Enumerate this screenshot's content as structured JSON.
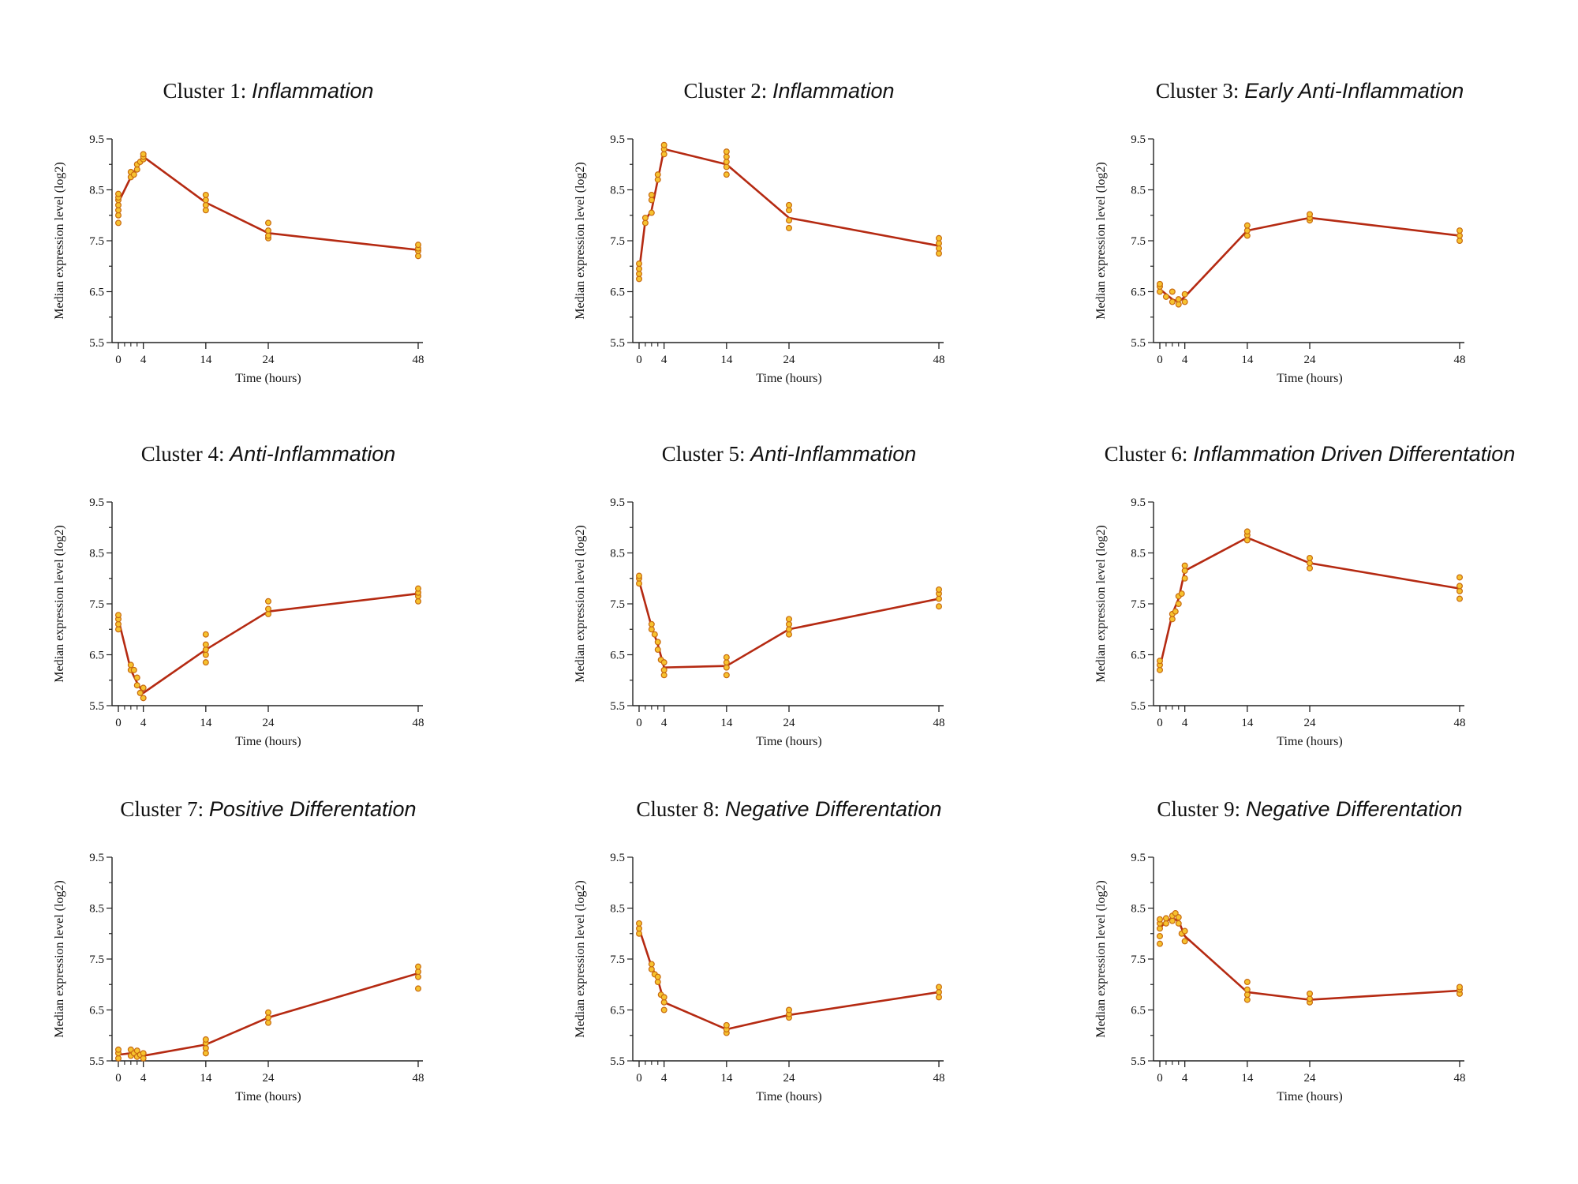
{
  "figure": {
    "y_axis_label": "Median expression level (log2)",
    "x_axis_label": "Time (hours)",
    "line_color": "#b52a12",
    "point_fill": "#f6c22f",
    "point_stroke": "#c86a10"
  },
  "chart_data": [
    {
      "type": "line",
      "title_prefix": "Cluster 1: ",
      "title_italic": "Inflammation",
      "xlabel": "Time (hours)",
      "ylabel": "Median expression level (log2)",
      "xlim": [
        0,
        48
      ],
      "ylim": [
        5.5,
        9.5
      ],
      "xticks": [
        0,
        4,
        14,
        24,
        48
      ],
      "yticks": [
        5.5,
        6.5,
        7.5,
        8.5,
        9.5
      ],
      "x": [
        0,
        2,
        3,
        4,
        14,
        24,
        48
      ],
      "y": [
        8.25,
        8.75,
        8.95,
        9.15,
        8.25,
        7.65,
        7.32
      ],
      "scatter": [
        [
          0,
          7.85
        ],
        [
          0,
          8.0
        ],
        [
          0,
          8.1
        ],
        [
          0,
          8.2
        ],
        [
          0,
          8.3
        ],
        [
          0,
          8.35
        ],
        [
          0,
          8.42
        ],
        [
          2,
          8.75
        ],
        [
          2,
          8.85
        ],
        [
          2.5,
          8.8
        ],
        [
          3,
          8.9
        ],
        [
          3,
          9.0
        ],
        [
          3.5,
          9.05
        ],
        [
          4,
          9.1
        ],
        [
          4,
          9.15
        ],
        [
          4,
          9.2
        ],
        [
          14,
          8.1
        ],
        [
          14,
          8.2
        ],
        [
          14,
          8.3
        ],
        [
          14,
          8.4
        ],
        [
          24,
          7.55
        ],
        [
          24,
          7.6
        ],
        [
          24,
          7.7
        ],
        [
          24,
          7.85
        ],
        [
          48,
          7.2
        ],
        [
          48,
          7.3
        ],
        [
          48,
          7.35
        ],
        [
          48,
          7.42
        ]
      ]
    },
    {
      "type": "line",
      "title_prefix": "Cluster 2: ",
      "title_italic": "Inflammation",
      "xlabel": "Time (hours)",
      "ylabel": "Median expression level (log2)",
      "xlim": [
        0,
        48
      ],
      "ylim": [
        5.5,
        9.5
      ],
      "xticks": [
        0,
        4,
        14,
        24,
        48
      ],
      "yticks": [
        5.5,
        6.5,
        7.5,
        8.5,
        9.5
      ],
      "x": [
        0,
        1,
        2,
        3,
        4,
        14,
        24,
        48
      ],
      "y": [
        6.9,
        7.9,
        8.1,
        8.7,
        9.3,
        9.0,
        7.95,
        7.4
      ],
      "scatter": [
        [
          0,
          6.75
        ],
        [
          0,
          6.85
        ],
        [
          0,
          6.95
        ],
        [
          0,
          7.05
        ],
        [
          1,
          7.85
        ],
        [
          1,
          7.95
        ],
        [
          2,
          8.05
        ],
        [
          2,
          8.3
        ],
        [
          2,
          8.4
        ],
        [
          3,
          8.7
        ],
        [
          3,
          8.8
        ],
        [
          4,
          9.2
        ],
        [
          4,
          9.3
        ],
        [
          4,
          9.38
        ],
        [
          14,
          8.8
        ],
        [
          14,
          8.95
        ],
        [
          14,
          9.05
        ],
        [
          14,
          9.15
        ],
        [
          14,
          9.25
        ],
        [
          24,
          7.75
        ],
        [
          24,
          7.9
        ],
        [
          24,
          8.1
        ],
        [
          24,
          8.2
        ],
        [
          48,
          7.25
        ],
        [
          48,
          7.35
        ],
        [
          48,
          7.45
        ],
        [
          48,
          7.55
        ]
      ]
    },
    {
      "type": "line",
      "title_prefix": "Cluster 3: ",
      "title_italic": "Early Anti-Inflammation",
      "xlabel": "Time (hours)",
      "ylabel": "Median expression level (log2)",
      "xlim": [
        0,
        48
      ],
      "ylim": [
        5.5,
        9.5
      ],
      "xticks": [
        0,
        4,
        14,
        24,
        48
      ],
      "yticks": [
        5.5,
        6.5,
        7.5,
        8.5,
        9.5
      ],
      "x": [
        0,
        2,
        3,
        4,
        14,
        24,
        48
      ],
      "y": [
        6.55,
        6.35,
        6.3,
        6.4,
        7.7,
        7.95,
        7.6
      ],
      "scatter": [
        [
          0,
          6.5
        ],
        [
          0,
          6.6
        ],
        [
          0,
          6.65
        ],
        [
          1,
          6.4
        ],
        [
          2,
          6.3
        ],
        [
          2,
          6.5
        ],
        [
          3,
          6.25
        ],
        [
          3,
          6.35
        ],
        [
          4,
          6.3
        ],
        [
          4,
          6.45
        ],
        [
          14,
          7.6
        ],
        [
          14,
          7.7
        ],
        [
          14,
          7.8
        ],
        [
          24,
          7.9
        ],
        [
          24,
          7.95
        ],
        [
          24,
          8.02
        ],
        [
          48,
          7.5
        ],
        [
          48,
          7.6
        ],
        [
          48,
          7.7
        ]
      ]
    },
    {
      "type": "line",
      "title_prefix": "Cluster  4: ",
      "title_italic": "Anti-Inflammation",
      "xlabel": "Time (hours)",
      "ylabel": "Median expression level (log2)",
      "xlim": [
        0,
        48
      ],
      "ylim": [
        5.5,
        9.5
      ],
      "xticks": [
        0,
        4,
        14,
        24,
        48
      ],
      "yticks": [
        5.5,
        6.5,
        7.5,
        8.5,
        9.5
      ],
      "x": [
        0,
        2,
        3,
        4,
        14,
        24,
        48
      ],
      "y": [
        7.2,
        6.2,
        5.95,
        5.75,
        6.6,
        7.35,
        7.7
      ],
      "scatter": [
        [
          0,
          7.0
        ],
        [
          0,
          7.1
        ],
        [
          0,
          7.2
        ],
        [
          0,
          7.28
        ],
        [
          2,
          6.2
        ],
        [
          2,
          6.3
        ],
        [
          2.5,
          6.2
        ],
        [
          3,
          5.9
        ],
        [
          3,
          6.05
        ],
        [
          3.5,
          5.75
        ],
        [
          4,
          5.65
        ],
        [
          4,
          5.85
        ],
        [
          14,
          6.35
        ],
        [
          14,
          6.5
        ],
        [
          14,
          6.6
        ],
        [
          14,
          6.7
        ],
        [
          14,
          6.9
        ],
        [
          24,
          7.3
        ],
        [
          24,
          7.4
        ],
        [
          24,
          7.55
        ],
        [
          48,
          7.55
        ],
        [
          48,
          7.65
        ],
        [
          48,
          7.72
        ],
        [
          48,
          7.8
        ]
      ]
    },
    {
      "type": "line",
      "title_prefix": "Cluster  5: ",
      "title_italic": "Anti-Inflammation",
      "xlabel": "Time (hours)",
      "ylabel": "Median expression level (log2)",
      "xlim": [
        0,
        48
      ],
      "ylim": [
        5.5,
        9.5
      ],
      "xticks": [
        0,
        4,
        14,
        24,
        48
      ],
      "yticks": [
        5.5,
        6.5,
        7.5,
        8.5,
        9.5
      ],
      "x": [
        0,
        2,
        3,
        4,
        14,
        24,
        48
      ],
      "y": [
        7.95,
        7.05,
        6.7,
        6.25,
        6.28,
        7.0,
        7.6
      ],
      "scatter": [
        [
          0,
          7.9
        ],
        [
          0,
          8.0
        ],
        [
          0,
          8.05
        ],
        [
          2,
          7.0
        ],
        [
          2,
          7.1
        ],
        [
          2.5,
          6.9
        ],
        [
          3,
          6.6
        ],
        [
          3,
          6.75
        ],
        [
          3.5,
          6.4
        ],
        [
          4,
          6.1
        ],
        [
          4,
          6.2
        ],
        [
          4,
          6.35
        ],
        [
          14,
          6.1
        ],
        [
          14,
          6.25
        ],
        [
          14,
          6.35
        ],
        [
          14,
          6.45
        ],
        [
          24,
          6.9
        ],
        [
          24,
          7.0
        ],
        [
          24,
          7.1
        ],
        [
          24,
          7.2
        ],
        [
          48,
          7.45
        ],
        [
          48,
          7.6
        ],
        [
          48,
          7.7
        ],
        [
          48,
          7.78
        ]
      ]
    },
    {
      "type": "line",
      "title_prefix": "Cluster  6: ",
      "title_italic": "Inflammation Driven Differentation",
      "xlabel": "Time (hours)",
      "ylabel": "Median expression level (log2)",
      "xlim": [
        0,
        48
      ],
      "ylim": [
        5.5,
        9.5
      ],
      "xticks": [
        0,
        4,
        14,
        24,
        48
      ],
      "yticks": [
        5.5,
        6.5,
        7.5,
        8.5,
        9.5
      ],
      "x": [
        0,
        2,
        3,
        4,
        14,
        24,
        48
      ],
      "y": [
        6.25,
        7.3,
        7.6,
        8.15,
        8.8,
        8.3,
        7.8
      ],
      "scatter": [
        [
          0,
          6.2
        ],
        [
          0,
          6.3
        ],
        [
          0,
          6.38
        ],
        [
          2,
          7.2
        ],
        [
          2,
          7.3
        ],
        [
          2.5,
          7.35
        ],
        [
          3,
          7.5
        ],
        [
          3,
          7.65
        ],
        [
          3.5,
          7.7
        ],
        [
          4,
          8.0
        ],
        [
          4,
          8.15
        ],
        [
          4,
          8.25
        ],
        [
          14,
          8.75
        ],
        [
          14,
          8.85
        ],
        [
          14,
          8.92
        ],
        [
          24,
          8.2
        ],
        [
          24,
          8.3
        ],
        [
          24,
          8.4
        ],
        [
          48,
          7.6
        ],
        [
          48,
          7.75
        ],
        [
          48,
          7.85
        ],
        [
          48,
          8.02
        ]
      ]
    },
    {
      "type": "line",
      "title_prefix": "Cluster  7: ",
      "title_italic": "Positive Differentation",
      "xlabel": "Time (hours)",
      "ylabel": "Median expression level (log2)",
      "xlim": [
        0,
        48
      ],
      "ylim": [
        5.5,
        9.5
      ],
      "xticks": [
        0,
        4,
        14,
        24,
        48
      ],
      "yticks": [
        5.5,
        6.5,
        7.5,
        8.5,
        9.5
      ],
      "x": [
        0,
        2,
        3,
        4,
        14,
        24,
        48
      ],
      "y": [
        5.62,
        5.65,
        5.63,
        5.6,
        5.82,
        6.35,
        7.22
      ],
      "scatter": [
        [
          0,
          5.55
        ],
        [
          0,
          5.65
        ],
        [
          0,
          5.72
        ],
        [
          2,
          5.6
        ],
        [
          2,
          5.72
        ],
        [
          2.5,
          5.65
        ],
        [
          3,
          5.58
        ],
        [
          3,
          5.7
        ],
        [
          3.5,
          5.62
        ],
        [
          4,
          5.55
        ],
        [
          4,
          5.65
        ],
        [
          14,
          5.65
        ],
        [
          14,
          5.75
        ],
        [
          14,
          5.85
        ],
        [
          14,
          5.92
        ],
        [
          24,
          6.25
        ],
        [
          24,
          6.35
        ],
        [
          24,
          6.45
        ],
        [
          48,
          6.92
        ],
        [
          48,
          7.15
        ],
        [
          48,
          7.25
        ],
        [
          48,
          7.35
        ]
      ]
    },
    {
      "type": "line",
      "title_prefix": "Cluster  8: ",
      "title_italic": "Negative Differentation",
      "xlabel": "Time (hours)",
      "ylabel": "Median expression level (log2)",
      "xlim": [
        0,
        48
      ],
      "ylim": [
        5.5,
        9.5
      ],
      "xticks": [
        0,
        4,
        14,
        24,
        48
      ],
      "yticks": [
        5.5,
        6.5,
        7.5,
        8.5,
        9.5
      ],
      "x": [
        0,
        2,
        3,
        4,
        14,
        24,
        48
      ],
      "y": [
        8.1,
        7.35,
        7.1,
        6.65,
        6.12,
        6.4,
        6.85
      ],
      "scatter": [
        [
          0,
          8.0
        ],
        [
          0,
          8.1
        ],
        [
          0,
          8.2
        ],
        [
          2,
          7.3
        ],
        [
          2,
          7.4
        ],
        [
          2.5,
          7.2
        ],
        [
          3,
          7.05
        ],
        [
          3,
          7.15
        ],
        [
          3.5,
          6.8
        ],
        [
          4,
          6.5
        ],
        [
          4,
          6.65
        ],
        [
          4,
          6.75
        ],
        [
          14,
          6.05
        ],
        [
          14,
          6.12
        ],
        [
          14,
          6.2
        ],
        [
          24,
          6.35
        ],
        [
          24,
          6.42
        ],
        [
          24,
          6.5
        ],
        [
          48,
          6.75
        ],
        [
          48,
          6.85
        ],
        [
          48,
          6.95
        ]
      ]
    },
    {
      "type": "line",
      "title_prefix": "Cluster  9: ",
      "title_italic": "Negative Differentation",
      "xlabel": "Time (hours)",
      "ylabel": "Median expression level (log2)",
      "xlim": [
        0,
        48
      ],
      "ylim": [
        5.5,
        9.5
      ],
      "xticks": [
        0,
        4,
        14,
        24,
        48
      ],
      "yticks": [
        5.5,
        6.5,
        7.5,
        8.5,
        9.5
      ],
      "x": [
        0,
        1,
        2,
        3,
        4,
        14,
        24,
        48
      ],
      "y": [
        8.1,
        8.25,
        8.3,
        8.25,
        7.95,
        6.85,
        6.7,
        6.88
      ],
      "scatter": [
        [
          0,
          7.8
        ],
        [
          0,
          7.95
        ],
        [
          0,
          8.1
        ],
        [
          0,
          8.2
        ],
        [
          0,
          8.28
        ],
        [
          1,
          8.2
        ],
        [
          1,
          8.3
        ],
        [
          2,
          8.25
        ],
        [
          2,
          8.35
        ],
        [
          2.5,
          8.4
        ],
        [
          3,
          8.2
        ],
        [
          3,
          8.32
        ],
        [
          3.5,
          8.0
        ],
        [
          4,
          7.85
        ],
        [
          4,
          8.05
        ],
        [
          14,
          6.7
        ],
        [
          14,
          6.8
        ],
        [
          14,
          6.9
        ],
        [
          14,
          7.05
        ],
        [
          24,
          6.65
        ],
        [
          24,
          6.72
        ],
        [
          24,
          6.82
        ],
        [
          48,
          6.82
        ],
        [
          48,
          6.9
        ],
        [
          48,
          6.95
        ]
      ]
    }
  ]
}
